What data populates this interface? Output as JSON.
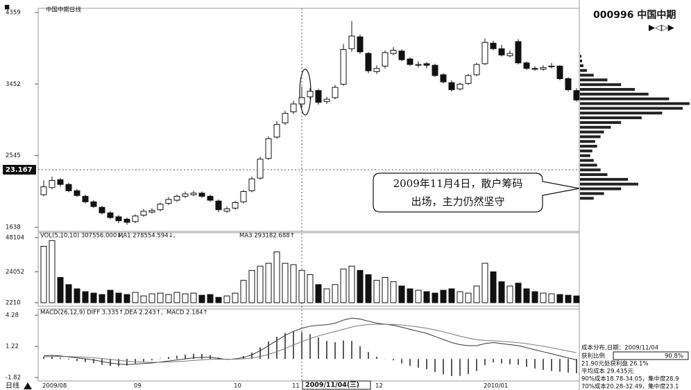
{
  "header": {
    "title": "中国中期日线",
    "code_name": "000996 中国中期",
    "period": "日线"
  },
  "chart_data": [
    {
      "type": "candlestick",
      "categories": [
        "2009/08",
        null,
        null,
        null,
        null,
        null,
        null,
        null,
        null,
        null,
        null,
        "09",
        null,
        null,
        null,
        null,
        null,
        null,
        null,
        null,
        null,
        null,
        null,
        "10",
        null,
        null,
        null,
        null,
        null,
        null,
        "11",
        null,
        null,
        null,
        null,
        null,
        null,
        null,
        null,
        null,
        "12",
        null,
        null,
        null,
        null,
        null,
        null,
        null,
        null,
        null,
        null,
        null,
        null,
        "2010/01",
        null,
        null,
        null,
        null,
        null,
        null,
        null,
        null,
        null,
        null,
        null
      ],
      "open": [
        2050,
        2140,
        2240,
        2180,
        2100,
        2030,
        1960,
        1890,
        1820,
        1770,
        1740,
        1710,
        1790,
        1830,
        1860,
        1940,
        1980,
        2030,
        2050,
        2070,
        2030,
        1970,
        1840,
        1880,
        1960,
        2100,
        2260,
        2510,
        2780,
        2960,
        3100,
        3200,
        3290,
        3370,
        3230,
        3280,
        3450,
        3900,
        4050,
        3840,
        3610,
        3680,
        3840,
        3870,
        3770,
        3690,
        3710,
        3690,
        3570,
        3470,
        3390,
        3460,
        3570,
        3710,
        3970,
        3900,
        3810,
        3990,
        3720,
        3650,
        3640,
        3670,
        3680,
        3520,
        3370
      ],
      "high": [
        2230,
        2280,
        2260,
        2200,
        2120,
        2050,
        1980,
        1910,
        1840,
        1790,
        1760,
        1800,
        1870,
        1880,
        1950,
        2020,
        2050,
        2090,
        2100,
        2090,
        2050,
        1990,
        1900,
        1970,
        2110,
        2280,
        2530,
        2790,
        2980,
        3110,
        3240,
        3420,
        3400,
        3390,
        3290,
        3440,
        3960,
        4250,
        4080,
        3860,
        3690,
        3880,
        3920,
        3890,
        3790,
        3740,
        3730,
        3710,
        3590,
        3500,
        3470,
        3580,
        3720,
        4030,
        4000,
        3950,
        3880,
        4020,
        3740,
        3680,
        3690,
        3720,
        3690,
        3540,
        3400
      ],
      "low": [
        2030,
        2120,
        2150,
        2080,
        2020,
        1940,
        1880,
        1800,
        1740,
        1690,
        1670,
        1690,
        1770,
        1810,
        1840,
        1920,
        1960,
        2010,
        2030,
        2010,
        1960,
        1830,
        1820,
        1860,
        1940,
        2080,
        2240,
        2490,
        2760,
        2930,
        3070,
        3150,
        3260,
        3190,
        3200,
        3260,
        3430,
        3860,
        3830,
        3590,
        3580,
        3650,
        3820,
        3740,
        3680,
        3660,
        3650,
        3540,
        3460,
        3360,
        3370,
        3440,
        3550,
        3690,
        3880,
        3800,
        3790,
        3700,
        3630,
        3620,
        3620,
        3650,
        3500,
        3360,
        3230
      ],
      "close": [
        2150,
        2230,
        2180,
        2100,
        2040,
        1960,
        1900,
        1820,
        1760,
        1720,
        1700,
        1780,
        1840,
        1850,
        1930,
        1990,
        2030,
        2060,
        2070,
        2030,
        1980,
        1860,
        1870,
        1950,
        2090,
        2250,
        2500,
        2760,
        2940,
        3080,
        3200,
        3280,
        3360,
        3220,
        3260,
        3410,
        3890,
        4060,
        3860,
        3620,
        3650,
        3850,
        3880,
        3760,
        3700,
        3700,
        3690,
        3560,
        3480,
        3380,
        3450,
        3560,
        3700,
        3980,
        3900,
        3820,
        3840,
        3720,
        3650,
        3640,
        3660,
        3680,
        3520,
        3380,
        3250
      ],
      "ylim": [
        1638,
        4359
      ],
      "yticks": [
        1638,
        2545,
        3452,
        4359
      ],
      "cursor_value": "23.167",
      "cursor_date": "2009/11/04(三)",
      "annotation": [
        "2009年11月4日，散户筹码",
        "出场，主力仍然坚守"
      ]
    },
    {
      "type": "bar",
      "legend": [
        "VOL(5,10,10) 307556.000↓,",
        "MA1 278554.594↓,",
        "MA3 293182.688↑"
      ],
      "values": [
        42000,
        46000,
        20000,
        15000,
        12000,
        10000,
        9000,
        8000,
        11000,
        9000,
        8000,
        9500,
        7000,
        8500,
        9000,
        8000,
        9500,
        8500,
        9000,
        7500,
        8000,
        6000,
        7000,
        9000,
        18000,
        25000,
        28000,
        30000,
        38000,
        30000,
        29000,
        25000,
        22000,
        15000,
        12000,
        15000,
        26000,
        28000,
        25000,
        22000,
        18000,
        20000,
        17000,
        14000,
        12000,
        11000,
        10000,
        9000,
        11000,
        12000,
        10000,
        9000,
        14000,
        30000,
        24000,
        17000,
        14000,
        16000,
        12000,
        10000,
        9000,
        8500,
        8000,
        7500,
        7000
      ],
      "ylim": [
        2210,
        48104
      ],
      "yticks": [
        2210,
        24052,
        48104
      ]
    },
    {
      "type": "macd",
      "legend": [
        "MACD(26,12,9) DIFF 3.335↑,",
        "DEA 2.243↑,",
        "MACD 2.184↑"
      ],
      "diff": [
        0.3,
        0.35,
        0.3,
        0.2,
        0.1,
        0,
        -0.1,
        -0.25,
        -0.4,
        -0.5,
        -0.55,
        -0.5,
        -0.45,
        -0.4,
        -0.3,
        -0.2,
        -0.1,
        0,
        0.1,
        0.15,
        0.15,
        0.05,
        -0.05,
        0,
        0.15,
        0.4,
        0.8,
        1.3,
        1.8,
        2.3,
        2.7,
        3.0,
        3.2,
        3.3,
        3.35,
        3.5,
        3.8,
        4.0,
        3.9,
        3.7,
        3.5,
        3.4,
        3.3,
        3.1,
        2.9,
        2.7,
        2.5,
        2.2,
        1.9,
        1.6,
        1.4,
        1.3,
        1.3,
        1.5,
        1.6,
        1.5,
        1.4,
        1.3,
        1.1,
        0.9,
        0.7,
        0.5,
        0.3,
        0.1,
        -0.1
      ],
      "dea": [
        0.2,
        0.23,
        0.24,
        0.23,
        0.2,
        0.16,
        0.11,
        0.04,
        -0.05,
        -0.14,
        -0.22,
        -0.28,
        -0.31,
        -0.33,
        -0.32,
        -0.3,
        -0.26,
        -0.21,
        -0.15,
        -0.09,
        -0.04,
        -0.02,
        -0.03,
        -0.02,
        0.01,
        0.09,
        0.23,
        0.44,
        0.71,
        1.03,
        1.36,
        1.69,
        1.99,
        2.25,
        2.47,
        2.68,
        2.9,
        3.12,
        3.28,
        3.36,
        3.39,
        3.39,
        3.37,
        3.32,
        3.24,
        3.13,
        3.0,
        2.84,
        2.65,
        2.44,
        2.23,
        2.04,
        1.89,
        1.81,
        1.77,
        1.72,
        1.66,
        1.59,
        1.49,
        1.37,
        1.24,
        1.09,
        0.93,
        0.77,
        0.6
      ],
      "values": [
        0.2,
        0.24,
        0.12,
        -0.06,
        -0.2,
        -0.32,
        -0.42,
        -0.58,
        -0.7,
        -0.72,
        -0.66,
        -0.44,
        -0.28,
        -0.14,
        0.04,
        0.2,
        0.32,
        0.42,
        0.5,
        0.48,
        0.38,
        0.14,
        -0.04,
        0.04,
        0.28,
        0.62,
        1.14,
        1.72,
        2.18,
        2.54,
        2.68,
        2.62,
        2.42,
        2.1,
        1.76,
        1.64,
        1.8,
        1.76,
        1.24,
        0.68,
        0.22,
        0.02,
        -0.14,
        -0.44,
        -0.68,
        -0.86,
        -1.0,
        -1.28,
        -1.5,
        -1.68,
        -1.66,
        -1.48,
        -1.18,
        -0.62,
        -0.34,
        -0.44,
        -0.52,
        -0.58,
        -0.78,
        -0.94,
        -1.08,
        -1.18,
        -1.26,
        -1.34,
        -1.4
      ],
      "ylim": [
        -1.82,
        4.28
      ],
      "yticks": [
        -1.82,
        1.22,
        4.28
      ]
    },
    {
      "type": "barh",
      "prices": [
        2000,
        2060,
        2120,
        2180,
        2240,
        2300,
        2360,
        2420,
        2480,
        2540,
        2600,
        2660,
        2720,
        2780,
        2840,
        2900,
        2960,
        3020,
        3080,
        3140,
        3200,
        3260,
        3320,
        3380,
        3440,
        3500,
        3560,
        3620,
        3680,
        3740,
        3800
      ],
      "values": [
        20,
        35,
        60,
        85,
        70,
        40,
        30,
        25,
        20,
        15,
        18,
        25,
        22,
        30,
        35,
        45,
        60,
        90,
        120,
        150,
        160,
        130,
        100,
        80,
        60,
        40,
        20,
        10,
        5,
        3,
        2
      ],
      "xlim": [
        0,
        160
      ]
    }
  ],
  "cost_info": {
    "title": "成本分布,日期：2009/11/04",
    "profit_label": "获利比例",
    "profit_ratio": "90.8%",
    "lines": [
      "21.90元处获利盘 26.1%",
      "平均成本 29.435元",
      "90%成本18.78-34.05，集中度28.9",
      "70%成本20.28-32.49，集中度23.1"
    ]
  }
}
